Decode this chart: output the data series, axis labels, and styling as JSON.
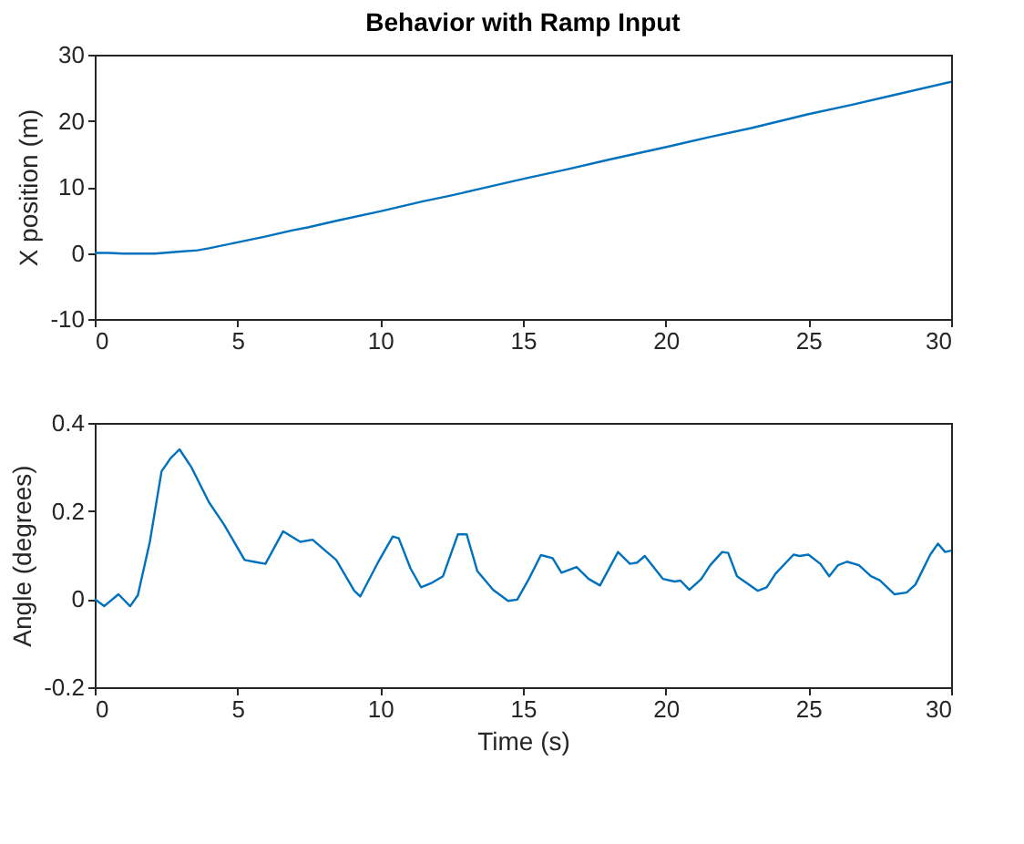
{
  "chart_data": [
    {
      "type": "line",
      "title": "Behavior with Ramp Input",
      "ylabel": "X position (m)",
      "xlim": [
        0,
        30
      ],
      "xticks": [
        0,
        5,
        10,
        15,
        20,
        25,
        30
      ],
      "ylim": [
        -10,
        30
      ],
      "yticks": [
        -10,
        0,
        10,
        20,
        30
      ],
      "grid": false,
      "series": [
        {
          "color": "#0072bd",
          "x": [
            0,
            0.5,
            1,
            2.1,
            3,
            3.6,
            4,
            5,
            6,
            6.9,
            7.5,
            8.5,
            10,
            11.5,
            12.5,
            13.5,
            15.1,
            16.5,
            18,
            20.1,
            21.5,
            23,
            25,
            26.5,
            28,
            30
          ],
          "values": [
            0,
            0,
            -0.1,
            -0.1,
            0.2,
            0.4,
            0.7,
            1.6,
            2.5,
            3.4,
            3.9,
            4.9,
            6.3,
            7.8,
            8.7,
            9.7,
            11.3,
            12.6,
            14.1,
            16.1,
            17.5,
            18.9,
            21,
            22.4,
            23.9,
            25.9
          ]
        }
      ]
    },
    {
      "type": "line",
      "xlabel": "Time (s)",
      "ylabel": "Angle (degrees)",
      "xlim": [
        0,
        30
      ],
      "xticks": [
        0,
        5,
        10,
        15,
        20,
        25,
        30
      ],
      "ylim": [
        -0.2,
        0.4
      ],
      "yticks": [
        -0.2,
        0,
        0.2,
        0.4
      ],
      "grid": false,
      "series": [
        {
          "color": "#0072bd",
          "x": [
            0,
            0.33,
            0.83,
            1.24,
            1.51,
            1.93,
            2.34,
            2.66,
            2.97,
            3.38,
            4.0,
            4.52,
            5.25,
            5.56,
            5.98,
            6.6,
            6.9,
            7.2,
            7.63,
            8.46,
            9.09,
            9.3,
            9.92,
            10.44,
            10.65,
            11.06,
            11.43,
            11.78,
            12.2,
            12.72,
            13.03,
            13.4,
            13.96,
            14.48,
            14.8,
            15.21,
            15.63,
            16.04,
            16.35,
            16.88,
            17.3,
            17.7,
            18.33,
            18.75,
            19.0,
            19.27,
            19.9,
            20.31,
            20.52,
            20.83,
            21.25,
            21.56,
            21.98,
            22.19,
            22.5,
            23.23,
            23.54,
            23.85,
            24.48,
            24.69,
            25.0,
            25.42,
            25.73,
            26.04,
            26.35,
            26.77,
            27.19,
            27.5,
            28.02,
            28.44,
            28.75,
            29.27,
            29.54,
            29.79,
            30
          ],
          "values": [
            0,
            -0.016,
            0.011,
            -0.016,
            0.009,
            0.13,
            0.29,
            0.32,
            0.34,
            0.3,
            0.22,
            0.17,
            0.089,
            0.085,
            0.08,
            0.154,
            0.142,
            0.13,
            0.135,
            0.089,
            0.019,
            0.006,
            0.083,
            0.142,
            0.138,
            0.07,
            0.027,
            0.036,
            0.052,
            0.147,
            0.147,
            0.064,
            0.021,
            -0.004,
            -0.001,
            0.046,
            0.1,
            0.093,
            0.06,
            0.073,
            0.046,
            0.031,
            0.107,
            0.08,
            0.083,
            0.098,
            0.046,
            0.04,
            0.042,
            0.021,
            0.046,
            0.077,
            0.107,
            0.105,
            0.052,
            0.019,
            0.027,
            0.058,
            0.101,
            0.098,
            0.101,
            0.08,
            0.052,
            0.077,
            0.085,
            0.077,
            0.052,
            0.043,
            0.011,
            0.015,
            0.033,
            0.101,
            0.126,
            0.107,
            0.11
          ]
        }
      ]
    }
  ]
}
